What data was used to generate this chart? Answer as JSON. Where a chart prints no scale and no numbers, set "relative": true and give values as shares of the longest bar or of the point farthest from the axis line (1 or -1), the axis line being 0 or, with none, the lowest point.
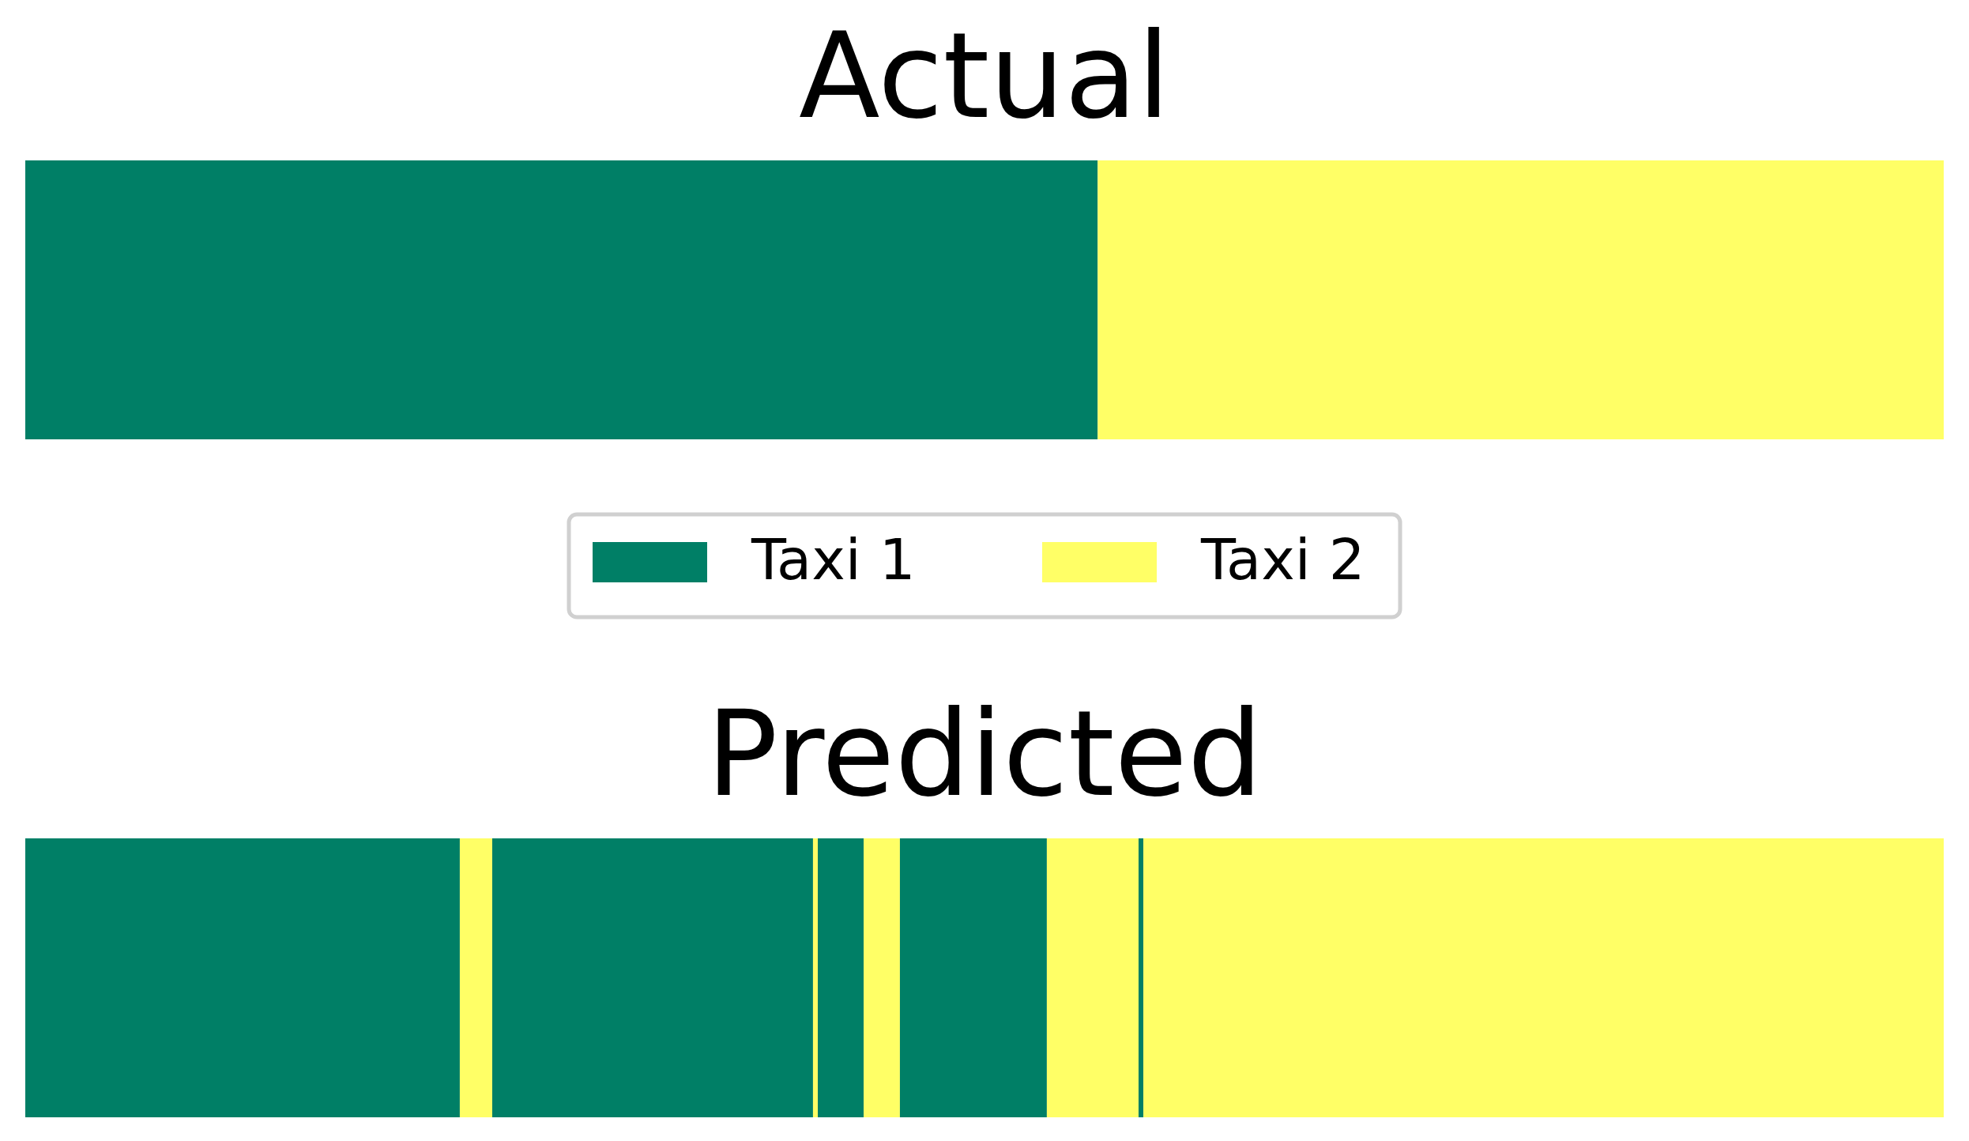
{
  "chart_data": [
    {
      "type": "bar",
      "title": "Actual",
      "orientation": "horizontal",
      "stacked": true,
      "relative": true,
      "categories": [
        null
      ],
      "legend": "bottom",
      "series": [
        {
          "name": "Taxi 1",
          "color": "#007f66",
          "values": [
            0.559
          ]
        },
        {
          "name": "Taxi 2",
          "color": "#ffff66",
          "values": [
            0.441
          ]
        }
      ]
    },
    {
      "type": "bar",
      "title": "Predicted",
      "orientation": "horizontal",
      "stacked": true,
      "relative": true,
      "categories": [
        null
      ],
      "series": [
        {
          "name": "Taxi 1",
          "color": "#007f66",
          "values": [
            0.2265
          ]
        },
        {
          "name": "Taxi 2",
          "color": "#ffff66",
          "values": [
            0.0169
          ]
        },
        {
          "name": "Taxi 1",
          "color": "#007f66",
          "values": [
            0.1672
          ]
        },
        {
          "name": "Taxi 2",
          "color": "#ffff66",
          "values": [
            0.0025
          ]
        },
        {
          "name": "Taxi 1",
          "color": "#007f66",
          "values": [
            0.0239
          ]
        },
        {
          "name": "Taxi 2",
          "color": "#ffff66",
          "values": [
            0.0189
          ]
        },
        {
          "name": "Taxi 1",
          "color": "#007f66",
          "values": [
            0.0766
          ]
        },
        {
          "name": "Taxi 2",
          "color": "#ffff66",
          "values": [
            0.0478
          ]
        },
        {
          "name": "Taxi 1",
          "color": "#007f66",
          "values": [
            0.0025
          ]
        },
        {
          "name": "Taxi 2",
          "color": "#ffff66",
          "values": [
            0.4172
          ]
        }
      ]
    }
  ]
}
